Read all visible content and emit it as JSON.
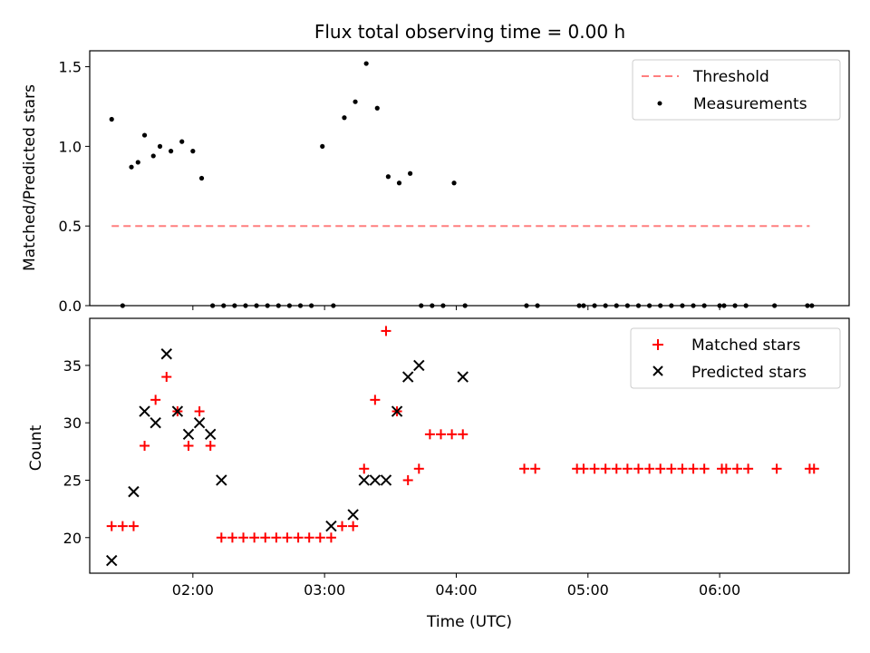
{
  "title": "Flux total observing time = 0.00 h",
  "colors": {
    "threshold": "#ff7f7f",
    "measurements": "#000000",
    "matched": "#ff0000",
    "predicted": "#000000"
  },
  "chart_data": [
    {
      "type": "scatter",
      "panel": "top",
      "title": "Flux total observing time = 0.00 h",
      "ylabel": "Matched/Predicted stars",
      "xlabel": "",
      "ylim": [
        0,
        1.6
      ],
      "yticks": [
        0.0,
        0.5,
        1.0,
        1.5
      ],
      "ytick_labels": [
        "0.0",
        "0.5",
        "1.0",
        "1.5"
      ],
      "legend": "top-right",
      "series": [
        {
          "name": "Threshold",
          "kind": "dashed-line",
          "x": [
            "01:23",
            "06:41"
          ],
          "y": [
            0.5,
            0.5
          ]
        },
        {
          "name": "Measurements",
          "kind": "points",
          "x": [
            "01:23",
            "01:28",
            "01:32",
            "01:35",
            "01:38",
            "01:42",
            "01:45",
            "01:50",
            "01:55",
            "02:00",
            "02:04",
            "02:09",
            "02:14",
            "02:19",
            "02:24",
            "02:29",
            "02:34",
            "02:39",
            "02:44",
            "02:49",
            "02:54",
            "02:59",
            "03:04",
            "03:09",
            "03:14",
            "03:19",
            "03:24",
            "03:29",
            "03:34",
            "03:39",
            "03:44",
            "03:49",
            "03:54",
            "03:59",
            "04:04",
            "04:32",
            "04:37",
            "04:56",
            "04:58",
            "05:03",
            "05:08",
            "05:13",
            "05:18",
            "05:23",
            "05:28",
            "05:33",
            "05:38",
            "05:43",
            "05:48",
            "05:53",
            "06:00",
            "06:02",
            "06:07",
            "06:12",
            "06:25",
            "06:40",
            "06:42"
          ],
          "y": [
            1.17,
            0.0,
            0.87,
            0.9,
            1.07,
            0.94,
            1.0,
            0.97,
            1.03,
            0.97,
            0.8,
            0.0,
            0.0,
            0.0,
            0.0,
            0.0,
            0.0,
            0.0,
            0.0,
            0.0,
            0.0,
            1.0,
            0.0,
            1.18,
            1.28,
            1.52,
            1.24,
            0.81,
            0.77,
            0.83,
            0.0,
            0.0,
            0.0,
            0.77,
            0.0,
            0.0,
            0.0,
            0.0,
            0.0,
            0.0,
            0.0,
            0.0,
            0.0,
            0.0,
            0.0,
            0.0,
            0.0,
            0.0,
            0.0,
            0.0,
            0.0,
            0.0,
            0.0,
            0.0,
            0.0,
            0.0,
            0.0
          ]
        }
      ]
    },
    {
      "type": "scatter",
      "panel": "bottom",
      "xlabel": "Time (UTC)",
      "ylabel": "Count",
      "ylim": [
        16.9,
        39.1
      ],
      "yticks": [
        20,
        25,
        30,
        35
      ],
      "ytick_labels": [
        "20",
        "25",
        "30",
        "35"
      ],
      "xlim": [
        "01:13",
        "06:59"
      ],
      "xticks": [
        "02:00",
        "03:00",
        "04:00",
        "05:00",
        "06:00"
      ],
      "xtick_labels": [
        "02:00",
        "03:00",
        "04:00",
        "05:00",
        "06:00"
      ],
      "legend": "top-right",
      "series": [
        {
          "name": "Matched stars",
          "marker": "+",
          "x": [
            "01:23",
            "01:28",
            "01:33",
            "01:38",
            "01:43",
            "01:48",
            "01:53",
            "01:58",
            "02:03",
            "02:08",
            "02:13",
            "02:18",
            "02:23",
            "02:28",
            "02:33",
            "02:38",
            "02:43",
            "02:48",
            "02:53",
            "02:58",
            "03:03",
            "03:08",
            "03:13",
            "03:18",
            "03:23",
            "03:28",
            "03:33",
            "03:38",
            "03:43",
            "03:48",
            "03:53",
            "03:58",
            "04:03",
            "04:31",
            "04:36",
            "04:55",
            "04:58",
            "05:03",
            "05:08",
            "05:13",
            "05:18",
            "05:23",
            "05:28",
            "05:33",
            "05:38",
            "05:43",
            "05:48",
            "05:53",
            "06:01",
            "06:03",
            "06:08",
            "06:13",
            "06:26",
            "06:41",
            "06:43"
          ],
          "y": [
            21,
            21,
            21,
            28,
            32,
            34,
            31,
            28,
            31,
            28,
            20,
            20,
            20,
            20,
            20,
            20,
            20,
            20,
            20,
            20,
            20,
            21,
            21,
            26,
            32,
            38,
            31,
            25,
            26,
            29,
            29,
            29,
            29,
            26,
            26,
            26,
            26,
            26,
            26,
            26,
            26,
            26,
            26,
            26,
            26,
            26,
            26,
            26,
            26,
            26,
            26,
            26,
            26,
            26,
            26
          ]
        },
        {
          "name": "Predicted stars",
          "marker": "x",
          "x": [
            "01:23",
            "01:33",
            "01:38",
            "01:43",
            "01:48",
            "01:53",
            "01:58",
            "02:03",
            "02:08",
            "02:13",
            "03:03",
            "03:13",
            "03:18",
            "03:23",
            "03:28",
            "03:33",
            "03:38",
            "03:43",
            "04:03"
          ],
          "y": [
            18,
            24,
            31,
            30,
            36,
            31,
            29,
            30,
            29,
            25,
            21,
            22,
            25,
            25,
            25,
            31,
            34,
            35,
            34
          ]
        }
      ]
    }
  ]
}
